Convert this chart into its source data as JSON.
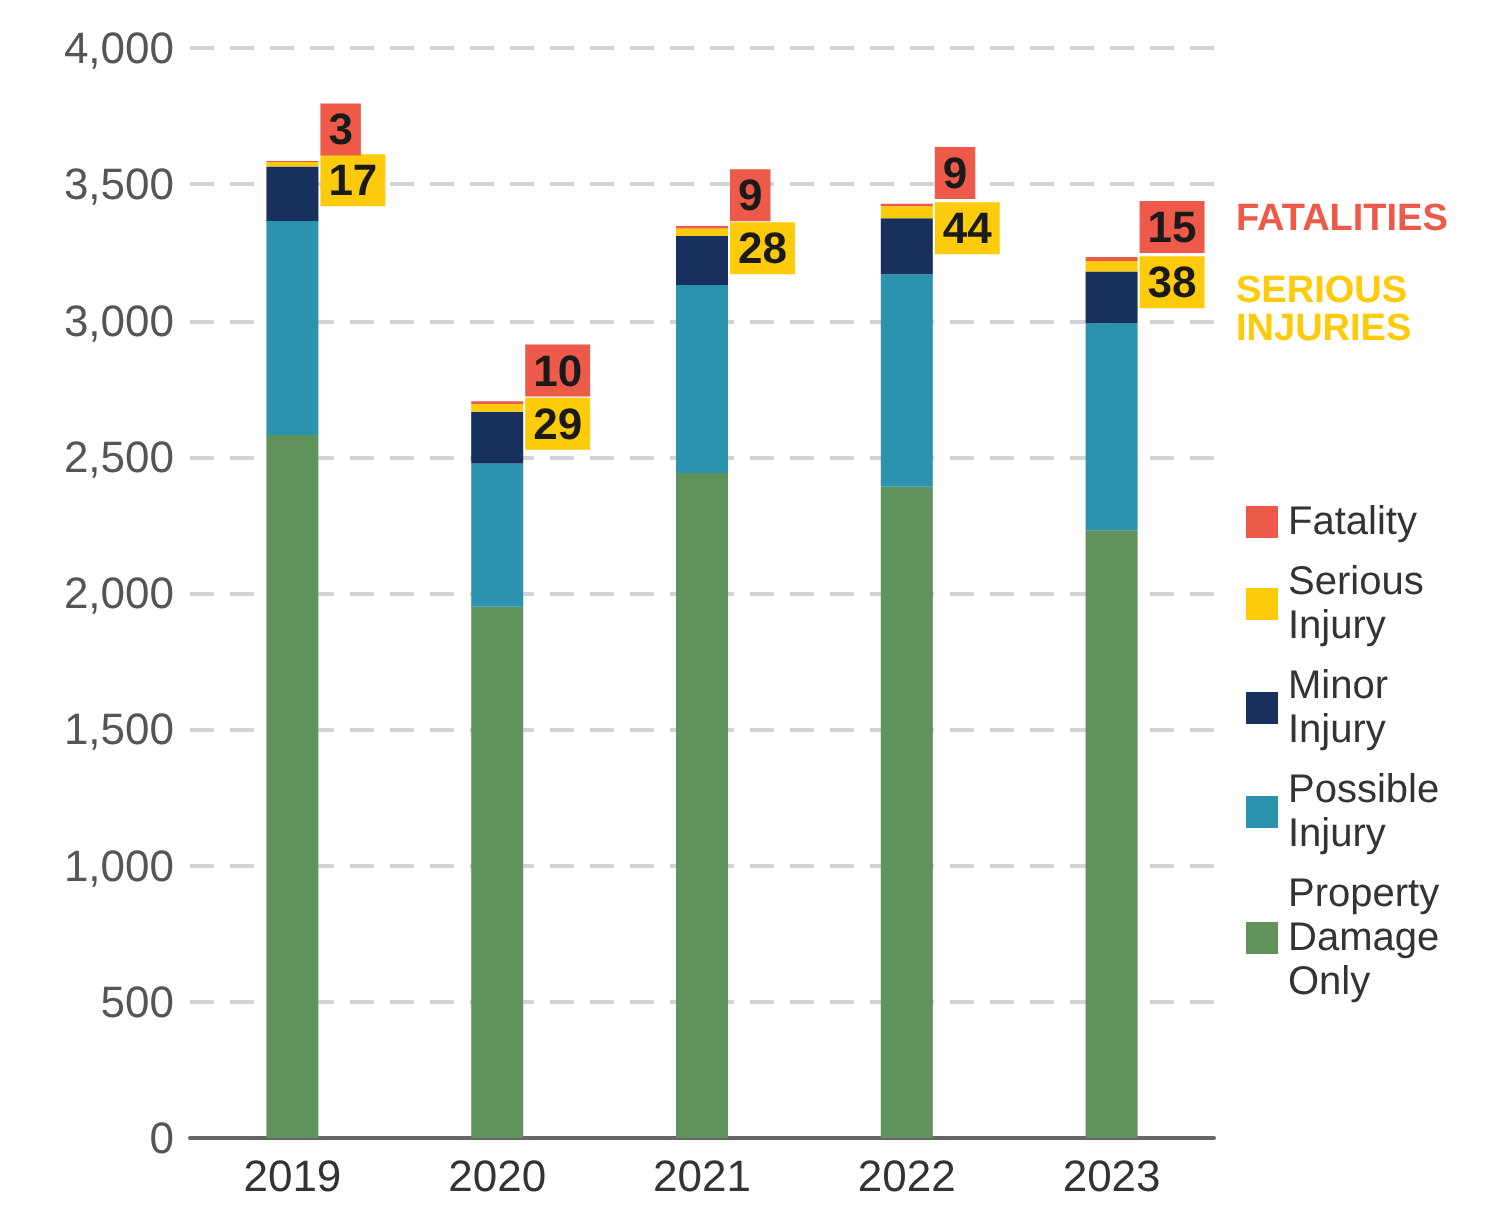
{
  "chart_data": {
    "type": "bar",
    "stacked": true,
    "categories": [
      "2019",
      "2020",
      "2021",
      "2022",
      "2023"
    ],
    "series": [
      {
        "name": "Property Damage Only",
        "color": "#5f935b",
        "values": [
          2580,
          1950,
          2440,
          2390,
          2230
        ]
      },
      {
        "name": "Possible Injury",
        "color": "#2b93ad",
        "values": [
          785,
          525,
          690,
          780,
          760
        ]
      },
      {
        "name": "Minor Injury",
        "color": "#17305e",
        "values": [
          200,
          190,
          180,
          205,
          190
        ]
      },
      {
        "name": "Serious Injury",
        "color": "#fecb0a",
        "values": [
          17,
          29,
          28,
          44,
          38
        ],
        "value_labels": [
          "17",
          "29",
          "28",
          "44",
          "38"
        ]
      },
      {
        "name": "Fatality",
        "color": "#ee5a4a",
        "values": [
          3,
          10,
          9,
          9,
          15
        ],
        "value_labels": [
          "3",
          "10",
          "9",
          "9",
          "15"
        ]
      }
    ],
    "ylim": [
      0,
      4000
    ],
    "yticks": [
      0,
      500,
      {
        "value": 1000,
        "label": "1,000"
      },
      {
        "value": 1500,
        "label": "1,500"
      },
      {
        "value": 2000,
        "label": "2,000"
      },
      {
        "value": 2500,
        "label": "2,500"
      },
      {
        "value": 3000,
        "label": "3,000"
      },
      {
        "value": 3500,
        "label": "3,500"
      },
      {
        "value": 4000,
        "label": "4,000"
      }
    ],
    "grid": "y",
    "legend": "right",
    "annotations": [
      "FATALITIES",
      "SERIOUS INJURIES"
    ]
  }
}
